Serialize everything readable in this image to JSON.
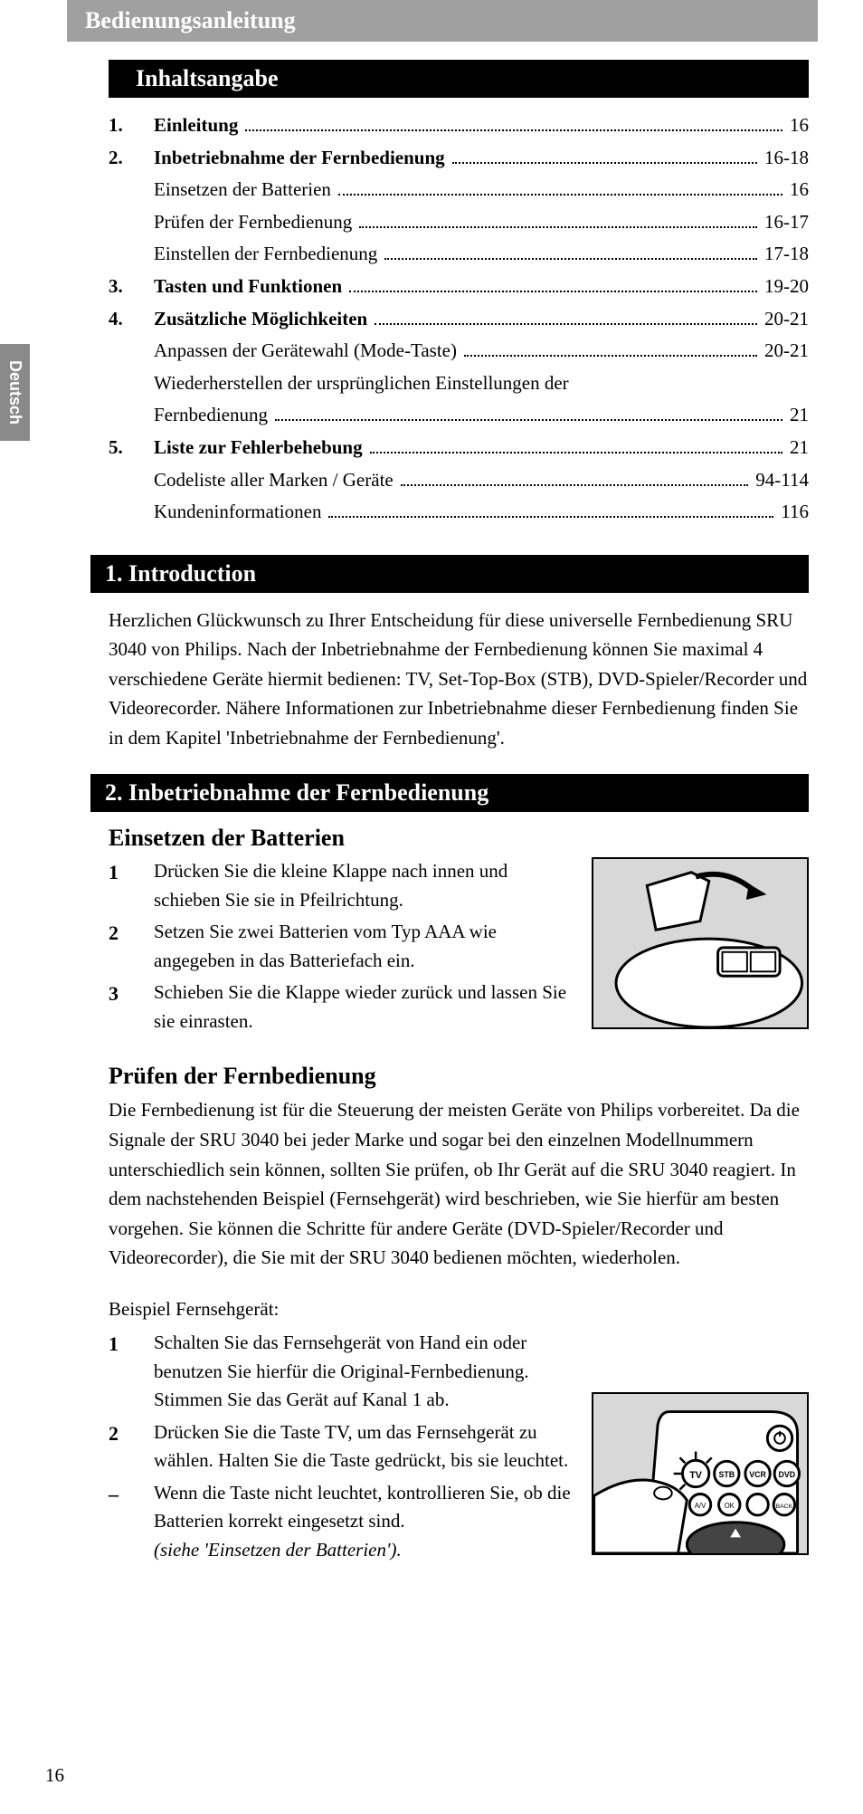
{
  "header_title": "Bedienungsanleitung",
  "side_tab": "Deutsch",
  "toc_heading": "Inhaltsangabe",
  "toc": [
    {
      "num": "1.",
      "title": "Einleitung",
      "page": "16",
      "bold": true,
      "indent": false
    },
    {
      "num": "2.",
      "title": "Inbetriebnahme der Fernbedienung",
      "page": "16-18",
      "bold": true,
      "indent": false
    },
    {
      "num": "",
      "title": "Einsetzen der Batterien",
      "page": "16",
      "bold": false,
      "indent": true
    },
    {
      "num": "",
      "title": "Prüfen der Fernbedienung",
      "page": "16-17",
      "bold": false,
      "indent": true
    },
    {
      "num": "",
      "title": "Einstellen der Fernbedienung",
      "page": "17-18",
      "bold": false,
      "indent": true
    },
    {
      "num": "3.",
      "title": "Tasten und Funktionen",
      "page": "19-20",
      "bold": true,
      "indent": false
    },
    {
      "num": "4.",
      "title": "Zusätzliche Möglichkeiten",
      "page": "20-21",
      "bold": true,
      "indent": false
    },
    {
      "num": "",
      "title": "Anpassen der Gerätewahl (Mode-Taste)",
      "page": "20-21",
      "bold": false,
      "indent": true
    },
    {
      "num": "",
      "title": "Wiederherstellen der ursprünglichen Einstellungen der",
      "page": "",
      "bold": false,
      "indent": true,
      "nowrap": true
    },
    {
      "num": "",
      "title": "Fernbedienung",
      "page": "21",
      "bold": false,
      "indent": true
    },
    {
      "num": "5.",
      "title": "Liste zur Fehlerbehebung",
      "page": "21",
      "bold": true,
      "indent": false
    },
    {
      "num": "",
      "title": "Codeliste aller Marken / Geräte",
      "page": "94-114",
      "bold": false,
      "indent": true
    },
    {
      "num": "",
      "title": "Kundeninformationen",
      "page": "116",
      "bold": false,
      "indent": true
    }
  ],
  "section1_heading": "1. Introduction",
  "section1_body": "Herzlichen Glückwunsch zu Ihrer Entscheidung für diese universelle Fern­bedienung SRU 3040 von Philips. Nach der Inbetriebnahme der Fernbedienung können Sie maximal 4 verschiedene Geräte hiermit bedienen: TV, Set-Top-Box (STB), DVD-Spieler/Recorder und Videorecorder. Nähere Informationen zur Inbetriebnahme dieser Fernbedienung finden Sie in dem Kapitel 'Inbetriebnahme der Fernbedienung'.",
  "section2_heading": "2. Inbetriebnahme der Fernbedienung",
  "sub_batteries": "Einsetzen der Batterien",
  "battery_steps": [
    {
      "num": "1",
      "text": "Drücken Sie die kleine Klappe nach innen und schieben Sie sie in Pfeilrichtung."
    },
    {
      "num": "2",
      "text": "Setzen Sie zwei Batterien vom Typ AAA wie angegeben in das Batteriefach ein."
    },
    {
      "num": "3",
      "text": "Schieben Sie die Klappe wieder zurück und lassen Sie sie einrasten."
    }
  ],
  "sub_test": "Prüfen der Fernbedienung",
  "test_body": "Die Fernbedienung ist für die Steuerung der meisten Geräte von Philips vorbereitet. Da die Signale der SRU 3040 bei jeder Marke und sogar bei den einzelnen Modellnummern unterschiedlich sein können, sollten Sie prüfen, ob Ihr Gerät auf die SRU 3040 reagiert. In dem nachstehenden Beispiel (Fernsehgerät) wird beschrieben, wie Sie hierfür am besten vorgehen. Sie können die Schritte für andere Geräte (DVD-Spieler/Recorder und Videorecorder), die Sie mit der SRU 3040 bedienen möchten, wiederholen.",
  "example_label": "Beispiel Fernsehgerät:",
  "tv_steps": [
    {
      "num": "1",
      "text": "Schalten Sie das Fernsehgerät von Hand ein oder benutzen Sie hierfür die Original-Fernbedienung. Stimmen Sie das Gerät auf Kanal 1 ab."
    },
    {
      "num": "2",
      "text": "Drücken Sie die Taste TV, um das Fernsehgerät zu wählen. Halten Sie die Taste gedrückt, bis sie leuchtet."
    },
    {
      "num": "–",
      "text": "Wenn die Taste nicht leuchtet, kontrollieren Sie, ob die Batterien korrekt eingesetzt sind."
    }
  ],
  "tv_italic": "(siehe 'Einsetzen der Batterien').",
  "pagenum": "16",
  "colors": {
    "header_bg": "#a0a0a0",
    "sidebar_bg": "#8a8a8a",
    "black": "#000000",
    "illus_bg": "#d8d8d8"
  }
}
